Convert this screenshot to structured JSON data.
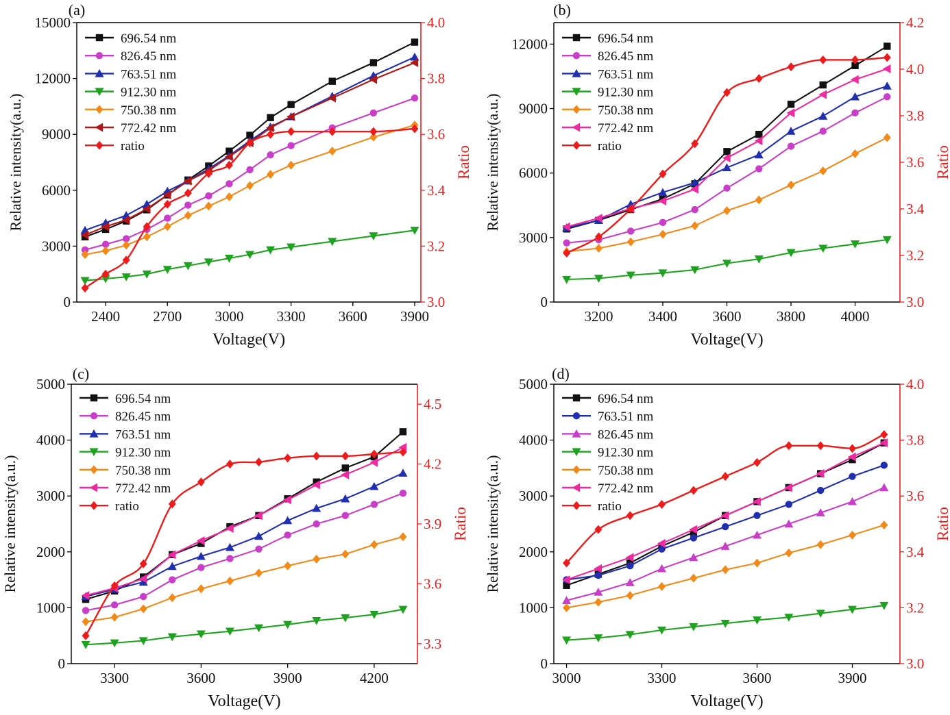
{
  "colors": {
    "black": "#111111",
    "magenta": "#c83ec8",
    "blue": "#1f2fae",
    "green": "#1fa21f",
    "orange": "#f28a1a",
    "darkred": "#b01818",
    "pink": "#ee2aa0",
    "red": "#ec1c1c"
  },
  "chart_data": [
    {
      "type": "line",
      "panel_label": "(a)",
      "xlabel": "Voltage(V)",
      "ylabel": "Relative intensity(a.u.)",
      "y2label": "Ratio",
      "xlim": [
        2260,
        3930
      ],
      "ylim": [
        0,
        15000
      ],
      "y2lim": [
        3.0,
        4.0
      ],
      "xticks": [
        "2400",
        "2700",
        "3000",
        "3300",
        "3600",
        "3900"
      ],
      "yticks": [
        "0",
        "3000",
        "6000",
        "9000",
        "12000",
        "15000"
      ],
      "y2ticks": [
        "3.0",
        "3.2",
        "3.4",
        "3.6",
        "3.8",
        "4.0"
      ],
      "legend": "top-left",
      "x": [
        2300,
        2400,
        2500,
        2600,
        2700,
        2800,
        2900,
        3000,
        3100,
        3200,
        3300,
        3500,
        3700,
        3900
      ],
      "series": [
        {
          "name": "696.54 nm",
          "color": "black",
          "marker": "square",
          "axis": "left",
          "values": [
            3500,
            3900,
            4350,
            4950,
            5750,
            6550,
            7300,
            8100,
            8950,
            9900,
            10600,
            11850,
            12850,
            13950
          ]
        },
        {
          "name": "826.45 nm",
          "color": "magenta",
          "marker": "circle",
          "axis": "left",
          "values": [
            2800,
            3100,
            3400,
            3900,
            4500,
            5200,
            5700,
            6350,
            7100,
            7900,
            8400,
            9350,
            10150,
            10950
          ]
        },
        {
          "name": "763.51 nm",
          "color": "blue",
          "marker": "triangle-up",
          "axis": "left",
          "values": [
            3850,
            4250,
            4650,
            5250,
            5950,
            6500,
            7150,
            7850,
            8650,
            9400,
            9950,
            11050,
            12150,
            13150
          ]
        },
        {
          "name": "912.30 nm",
          "color": "green",
          "marker": "triangle-down",
          "axis": "left",
          "values": [
            1150,
            1250,
            1350,
            1500,
            1750,
            1950,
            2150,
            2350,
            2550,
            2800,
            2950,
            3250,
            3550,
            3850
          ]
        },
        {
          "name": "750.38 nm",
          "color": "orange",
          "marker": "diamond",
          "axis": "left",
          "values": [
            2550,
            2750,
            3050,
            3500,
            4050,
            4650,
            5150,
            5650,
            6250,
            6850,
            7350,
            8100,
            8850,
            9500
          ]
        },
        {
          "name": "772.42 nm",
          "color": "darkred",
          "marker": "triangle-left",
          "axis": "left",
          "values": [
            3600,
            4050,
            4400,
            5000,
            5750,
            6500,
            7050,
            7800,
            8550,
            9350,
            9950,
            10950,
            11950,
            12850
          ]
        },
        {
          "name": "ratio",
          "color": "red",
          "marker": "diamond",
          "axis": "right",
          "values": [
            3.05,
            3.1,
            3.15,
            3.27,
            3.35,
            3.39,
            3.46,
            3.49,
            3.57,
            3.6,
            3.61,
            3.61,
            3.61,
            3.62
          ]
        }
      ]
    },
    {
      "type": "line",
      "panel_label": "(b)",
      "xlabel": "Voltage(V)",
      "ylabel": "Relative intensity(a.u.)",
      "y2label": "Ratio",
      "xlim": [
        3060,
        4140
      ],
      "ylim": [
        0,
        13000
      ],
      "y2lim": [
        3.0,
        4.2
      ],
      "xticks": [
        "3200",
        "3400",
        "3600",
        "3800",
        "4000"
      ],
      "yticks": [
        "0",
        "3000",
        "6000",
        "9000",
        "12000"
      ],
      "y2ticks": [
        "3.0",
        "3.2",
        "3.4",
        "3.6",
        "3.8",
        "4.0",
        "4.2"
      ],
      "legend": "top-left",
      "x": [
        3100,
        3200,
        3300,
        3400,
        3500,
        3600,
        3700,
        3800,
        3900,
        4000,
        4100
      ],
      "series": [
        {
          "name": "696.54 nm",
          "color": "black",
          "marker": "square",
          "axis": "left",
          "values": [
            3400,
            3800,
            4300,
            4800,
            5500,
            7000,
            7800,
            9200,
            10100,
            11000,
            11900
          ]
        },
        {
          "name": "826.45 nm",
          "color": "magenta",
          "marker": "circle",
          "axis": "left",
          "values": [
            2750,
            2900,
            3300,
            3700,
            4300,
            5300,
            6200,
            7250,
            7950,
            8800,
            9550
          ]
        },
        {
          "name": "763.51 nm",
          "color": "blue",
          "marker": "triangle-up",
          "axis": "left",
          "values": [
            3450,
            3800,
            4550,
            5100,
            5550,
            6250,
            6850,
            7950,
            8650,
            9550,
            10050
          ]
        },
        {
          "name": "912.30 nm",
          "color": "green",
          "marker": "triangle-down",
          "axis": "left",
          "values": [
            1050,
            1100,
            1250,
            1350,
            1500,
            1800,
            2000,
            2300,
            2500,
            2700,
            2900
          ]
        },
        {
          "name": "750.38 nm",
          "color": "orange",
          "marker": "diamond",
          "axis": "left",
          "values": [
            2350,
            2500,
            2800,
            3150,
            3550,
            4250,
            4750,
            5450,
            6100,
            6900,
            7650
          ]
        },
        {
          "name": "772.42 nm",
          "color": "pink",
          "marker": "triangle-left",
          "axis": "left",
          "values": [
            3500,
            3900,
            4350,
            4700,
            5250,
            6700,
            7500,
            8800,
            9650,
            10350,
            10850
          ]
        },
        {
          "name": "ratio",
          "color": "red",
          "marker": "diamond",
          "axis": "right",
          "values": [
            3.21,
            3.28,
            3.4,
            3.55,
            3.68,
            3.9,
            3.96,
            4.01,
            4.04,
            4.04,
            4.05
          ]
        }
      ]
    },
    {
      "type": "line",
      "panel_label": "(c)",
      "xlabel": "Voltage(V)",
      "ylabel": "Relative intensity(a.u.)",
      "y2label": "Ratio",
      "xlim": [
        3150,
        4350
      ],
      "ylim": [
        0,
        5000
      ],
      "y2lim": [
        3.2,
        4.6
      ],
      "xticks": [
        "3300",
        "3600",
        "3900",
        "4200"
      ],
      "yticks": [
        "0",
        "1000",
        "2000",
        "3000",
        "4000",
        "5000"
      ],
      "y2ticks": [
        "3.3",
        "3.6",
        "3.9",
        "4.2",
        "4.5"
      ],
      "legend": "top-left",
      "x": [
        3200,
        3300,
        3400,
        3500,
        3600,
        3700,
        3800,
        3900,
        4000,
        4100,
        4200,
        4300
      ],
      "series": [
        {
          "name": "696.54 nm",
          "color": "black",
          "marker": "square",
          "axis": "left",
          "values": [
            1150,
            1300,
            1550,
            1950,
            2150,
            2450,
            2650,
            2950,
            3250,
            3500,
            3700,
            4150
          ]
        },
        {
          "name": "826.45 nm",
          "color": "magenta",
          "marker": "circle",
          "axis": "left",
          "values": [
            950,
            1050,
            1200,
            1500,
            1720,
            1880,
            2050,
            2300,
            2500,
            2650,
            2850,
            3050
          ]
        },
        {
          "name": "763.51 nm",
          "color": "blue",
          "marker": "triangle-up",
          "axis": "left",
          "values": [
            1200,
            1330,
            1460,
            1740,
            1920,
            2080,
            2280,
            2560,
            2780,
            2950,
            3170,
            3410
          ]
        },
        {
          "name": "912.30 nm",
          "color": "green",
          "marker": "triangle-down",
          "axis": "left",
          "values": [
            340,
            370,
            410,
            480,
            530,
            580,
            640,
            700,
            770,
            820,
            880,
            970
          ]
        },
        {
          "name": "750.38 nm",
          "color": "orange",
          "marker": "diamond",
          "axis": "left",
          "values": [
            750,
            830,
            980,
            1180,
            1340,
            1480,
            1620,
            1750,
            1870,
            1960,
            2130,
            2270
          ]
        },
        {
          "name": "772.42 nm",
          "color": "pink",
          "marker": "triangle-left",
          "axis": "left",
          "values": [
            1220,
            1350,
            1520,
            1950,
            2200,
            2420,
            2650,
            2930,
            3200,
            3380,
            3600,
            3870
          ]
        },
        {
          "name": "ratio",
          "color": "red",
          "marker": "diamond",
          "axis": "right",
          "values": [
            3.34,
            3.59,
            3.7,
            4.0,
            4.11,
            4.2,
            4.21,
            4.23,
            4.24,
            4.24,
            4.25,
            4.26
          ]
        }
      ]
    },
    {
      "type": "line",
      "panel_label": "(d)",
      "xlabel": "Voltage(V)",
      "ylabel": "Relative intensity(a.u.)",
      "y2label": "Ratio",
      "xlim": [
        2960,
        4050
      ],
      "ylim": [
        0,
        5000
      ],
      "y2lim": [
        3.0,
        4.0
      ],
      "xticks": [
        "3000",
        "3300",
        "3600",
        "3900"
      ],
      "yticks": [
        "0",
        "1000",
        "2000",
        "3000",
        "4000",
        "5000"
      ],
      "y2ticks": [
        "3.0",
        "3.2",
        "3.4",
        "3.6",
        "3.8",
        "4.0"
      ],
      "legend": "top-left",
      "x": [
        3000,
        3100,
        3200,
        3300,
        3400,
        3500,
        3600,
        3700,
        3800,
        3900,
        4000
      ],
      "series": [
        {
          "name": "696.54 nm",
          "color": "black",
          "marker": "square",
          "axis": "left",
          "values": [
            1400,
            1600,
            1800,
            2100,
            2350,
            2650,
            2900,
            3150,
            3400,
            3650,
            3950
          ]
        },
        {
          "name": "763.51 nm",
          "color": "blue",
          "marker": "circle",
          "axis": "left",
          "values": [
            1500,
            1580,
            1750,
            2050,
            2250,
            2450,
            2650,
            2850,
            3100,
            3350,
            3550
          ]
        },
        {
          "name": "826.45 nm",
          "color": "magenta",
          "marker": "triangle-up",
          "axis": "left",
          "values": [
            1130,
            1280,
            1450,
            1700,
            1900,
            2100,
            2300,
            2500,
            2700,
            2900,
            3150
          ]
        },
        {
          "name": "912.30 nm",
          "color": "green",
          "marker": "triangle-down",
          "axis": "left",
          "values": [
            420,
            460,
            520,
            600,
            660,
            720,
            780,
            830,
            900,
            970,
            1040
          ]
        },
        {
          "name": "750.38 nm",
          "color": "orange",
          "marker": "diamond",
          "axis": "left",
          "values": [
            1000,
            1100,
            1220,
            1380,
            1530,
            1680,
            1800,
            1980,
            2130,
            2300,
            2480
          ]
        },
        {
          "name": "772.42 nm",
          "color": "pink",
          "marker": "triangle-left",
          "axis": "left",
          "values": [
            1500,
            1700,
            1900,
            2150,
            2400,
            2650,
            2900,
            3150,
            3400,
            3700,
            3950
          ]
        },
        {
          "name": "ratio",
          "color": "red",
          "marker": "diamond",
          "axis": "right",
          "values": [
            3.36,
            3.48,
            3.53,
            3.57,
            3.62,
            3.67,
            3.72,
            3.78,
            3.78,
            3.77,
            3.82
          ]
        }
      ]
    }
  ]
}
